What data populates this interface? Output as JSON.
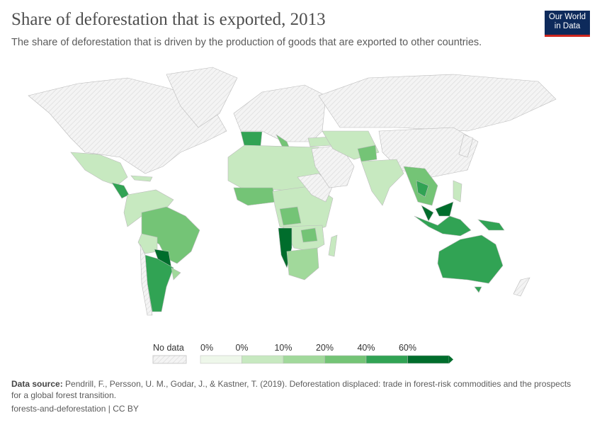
{
  "header": {
    "title": "Share of deforestation that is exported, 2013",
    "subtitle": "The share of deforestation that is driven by the production of goods that are exported to other countries.",
    "logo": "Our World in Data"
  },
  "legend": {
    "no_data_label": "No data",
    "bins": [
      {
        "label": "0%",
        "color": "#eef7ea"
      },
      {
        "label": "0%",
        "color": "#c7e9c0"
      },
      {
        "label": "10%",
        "color": "#a1d99b"
      },
      {
        "label": "20%",
        "color": "#74c476"
      },
      {
        "label": "40%",
        "color": "#31a354"
      },
      {
        "label": "60%",
        "color": "#006d2c"
      }
    ]
  },
  "footer": {
    "source_label": "Data source:",
    "source_text": "Pendrill, F., Persson, U. M., Godar, J., & Kastner, T. (2019). Deforestation displaced: trade in forest-risk commodities and the prospects for a global forest transition.",
    "license": "forests-and-deforestation | CC BY"
  }
}
